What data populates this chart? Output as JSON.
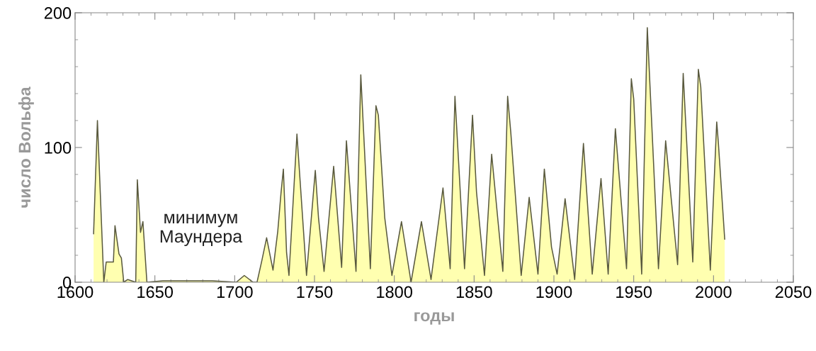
{
  "chart_data": {
    "type": "area",
    "xlabel": "годы",
    "ylabel": "число Вольфа",
    "xlim": [
      1600,
      2050
    ],
    "ylim": [
      0,
      200
    ],
    "xticks": [
      1600,
      1650,
      1700,
      1750,
      1800,
      1850,
      1900,
      1950,
      2000,
      2050
    ],
    "yticks": [
      0,
      100,
      200
    ],
    "grid": false,
    "marker": "none",
    "line_style": "solid",
    "annotations": [
      "минимум\nМаундера"
    ],
    "series": [
      {
        "color": "#ffffb0",
        "x": [
          1611.6,
          1614,
          1618,
          1619.5,
          1624,
          1625,
          1627.5,
          1629,
          1630.5,
          1633,
          1638,
          1639,
          1641,
          1642.5,
          1645,
          1655,
          1668,
          1686,
          1701,
          1706,
          1711.5,
          1714,
          1717,
          1720,
          1724,
          1727,
          1729,
          1730.5,
          1732.5,
          1734,
          1739,
          1745,
          1750.5,
          1752.5,
          1756,
          1762,
          1767,
          1770,
          1776,
          1779,
          1785,
          1788.5,
          1790,
          1794,
          1798.5,
          1804.5,
          1810.5,
          1817,
          1823,
          1830.5,
          1835,
          1838,
          1844,
          1849,
          1851.5,
          1856.5,
          1861,
          1865,
          1868,
          1871,
          1873,
          1879.5,
          1884.5,
          1890,
          1894,
          1898.5,
          1902,
          1907,
          1913,
          1918.5,
          1924,
          1929.5,
          1934,
          1938.5,
          1945.5,
          1948.5,
          1950,
          1955,
          1958.5,
          1965.5,
          1970,
          1973,
          1977.5,
          1981,
          1987,
          1990.5,
          1992,
          1998,
          2002,
          2003,
          2007
        ],
        "values": [
          36,
          120,
          0,
          15,
          15,
          42,
          21,
          18,
          0,
          2,
          0,
          76,
          37,
          45,
          0,
          1,
          1,
          1,
          0,
          5,
          0,
          0,
          16,
          33,
          9,
          38,
          66,
          84,
          22,
          5,
          110,
          5,
          83,
          48,
          8,
          86,
          11,
          105,
          8,
          154,
          10,
          131,
          124,
          48,
          5,
          45,
          0,
          45,
          2,
          70,
          10,
          138,
          10,
          124,
          67,
          5,
          95,
          45,
          8,
          138,
          111,
          5,
          63,
          6,
          84,
          26,
          6,
          62,
          2,
          103,
          6,
          77,
          6,
          114,
          10,
          151,
          136,
          6,
          189,
          10,
          105,
          68,
          13,
          155,
          15,
          158,
          145,
          9,
          119,
          104,
          32
        ]
      }
    ]
  }
}
